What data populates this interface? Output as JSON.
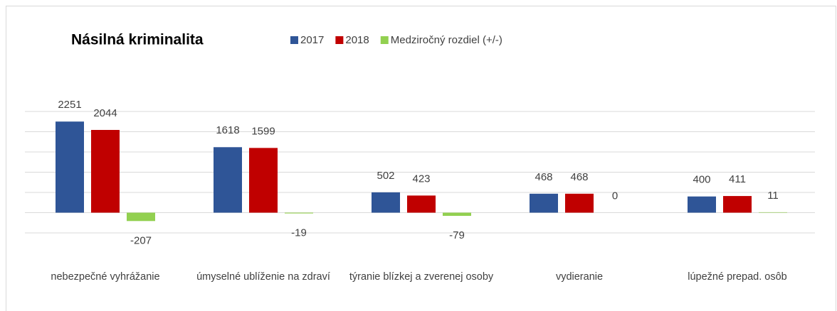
{
  "chart_data": {
    "type": "bar",
    "title": "Násilná kriminalita",
    "categories": [
      "nebezpečné vyhrážanie",
      "úmyselné ublíženie na zdraví",
      "týranie blízkej a zverenej osoby",
      "vydieranie",
      "lúpežné prepad. osôb"
    ],
    "series": [
      {
        "name": "2017",
        "color": "#2f5597",
        "values": [
          2251,
          1618,
          502,
          468,
          400
        ]
      },
      {
        "name": "2018",
        "color": "#c00000",
        "values": [
          2044,
          1599,
          423,
          468,
          411
        ]
      },
      {
        "name": "Medziročný rozdiel (+/-)",
        "color": "#92d050",
        "values": [
          -207,
          -19,
          -79,
          0,
          11
        ]
      }
    ],
    "ylim": [
      -500,
      2500
    ],
    "yticks": [
      -500,
      0,
      500,
      1000,
      1500,
      2000,
      2500
    ],
    "grid": true,
    "legend": "top"
  }
}
